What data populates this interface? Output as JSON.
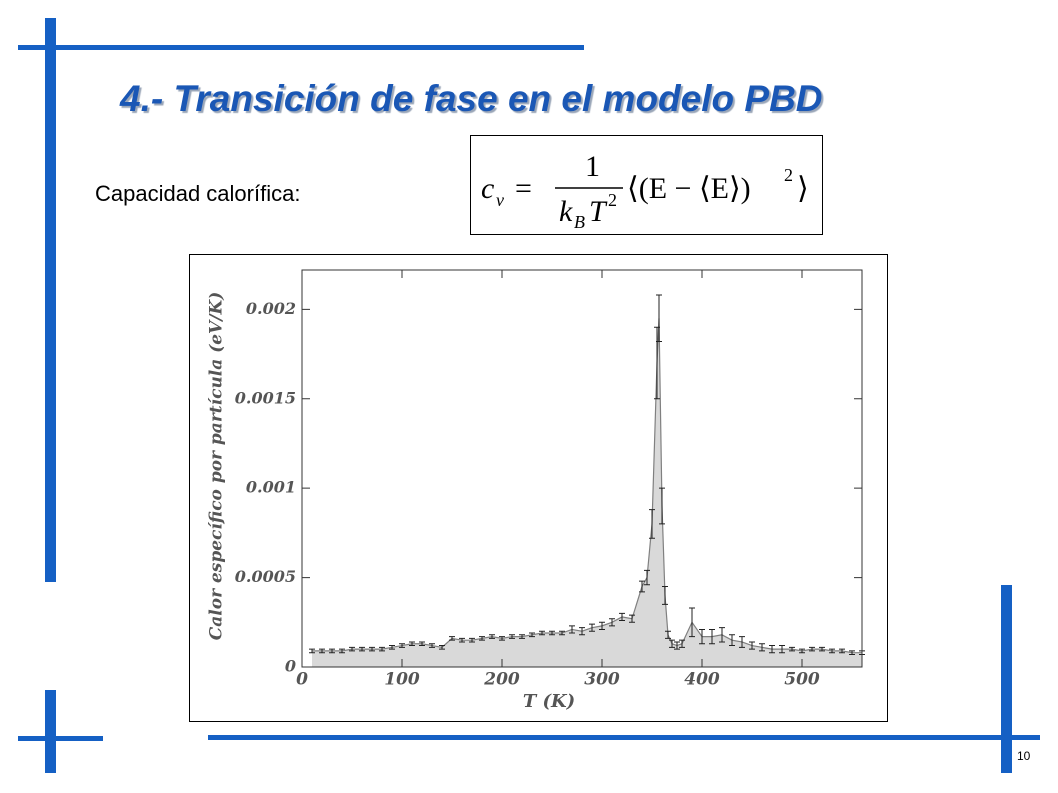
{
  "slide": {
    "title": "4.- Transición de fase en el modelo PBD",
    "label": "Capacidad calorífica:",
    "formula": {
      "lhs": "c",
      "lhs_sub": "v",
      "equals": "=",
      "numerator": "1",
      "den_k": "k",
      "den_sub": "B",
      "den_T": "T",
      "den_exp": "2",
      "rhs": "⟨(E − ⟨E⟩)",
      "rhs_exp": "2",
      "rhs_close": "⟩"
    },
    "page_number": "10"
  },
  "chart_data": {
    "type": "line",
    "xlabel": "T (K)",
    "ylabel": "Calor específico por partícula (eV/K)",
    "color": "#808080",
    "fill": "#d9d9d9",
    "error_color": "#222222",
    "x": [
      10,
      20,
      30,
      40,
      50,
      60,
      70,
      80,
      90,
      100,
      110,
      120,
      130,
      140,
      150,
      160,
      170,
      180,
      190,
      200,
      210,
      220,
      230,
      240,
      250,
      260,
      270,
      280,
      290,
      300,
      310,
      320,
      330,
      340,
      345,
      350,
      355,
      357,
      360,
      363,
      366,
      370,
      375,
      380,
      390,
      400,
      410,
      420,
      430,
      440,
      450,
      460,
      470,
      480,
      490,
      500,
      510,
      520,
      530,
      540,
      550,
      560
    ],
    "values": [
      9e-05,
      9e-05,
      9e-05,
      9e-05,
      0.0001,
      0.0001,
      0.0001,
      0.0001,
      0.00011,
      0.00012,
      0.00013,
      0.00013,
      0.00012,
      0.00011,
      0.00016,
      0.00015,
      0.00015,
      0.00016,
      0.00017,
      0.00016,
      0.00017,
      0.00017,
      0.00018,
      0.00019,
      0.00019,
      0.00019,
      0.00021,
      0.0002,
      0.00022,
      0.00023,
      0.00025,
      0.00028,
      0.00027,
      0.00045,
      0.0005,
      0.0008,
      0.0017,
      0.00195,
      0.0009,
      0.0004,
      0.00018,
      0.00013,
      0.00012,
      0.00013,
      0.00025,
      0.00017,
      0.00017,
      0.00018,
      0.00015,
      0.00014,
      0.00012,
      0.00011,
      0.0001,
      0.0001,
      0.0001,
      9e-05,
      0.0001,
      0.0001,
      9e-05,
      9e-05,
      8e-05,
      8e-05
    ],
    "errors": [
      1e-05,
      1e-05,
      1e-05,
      1e-05,
      1e-05,
      1e-05,
      1e-05,
      1e-05,
      1e-05,
      1e-05,
      1e-05,
      1e-05,
      1e-05,
      1e-05,
      1e-05,
      1e-05,
      1e-05,
      1e-05,
      1e-05,
      1e-05,
      1e-05,
      1e-05,
      1e-05,
      1e-05,
      1e-05,
      1e-05,
      2e-05,
      2e-05,
      2e-05,
      2e-05,
      2e-05,
      2e-05,
      2e-05,
      3e-05,
      4e-05,
      8e-05,
      0.0002,
      0.00013,
      0.0001,
      5e-05,
      2e-05,
      2e-05,
      2e-05,
      2e-05,
      8e-05,
      4e-05,
      4e-05,
      4e-05,
      3e-05,
      3e-05,
      2e-05,
      2e-05,
      2e-05,
      2e-05,
      1e-05,
      1e-05,
      1e-05,
      1e-05,
      1e-05,
      1e-05,
      1e-05,
      1e-05
    ],
    "xlim": [
      0,
      560
    ],
    "ylim": [
      0,
      0.00222
    ],
    "xticks": [
      0,
      100,
      200,
      300,
      400,
      500
    ],
    "yticks": [
      0,
      0.0005,
      0.001,
      0.0015,
      0.002
    ]
  }
}
